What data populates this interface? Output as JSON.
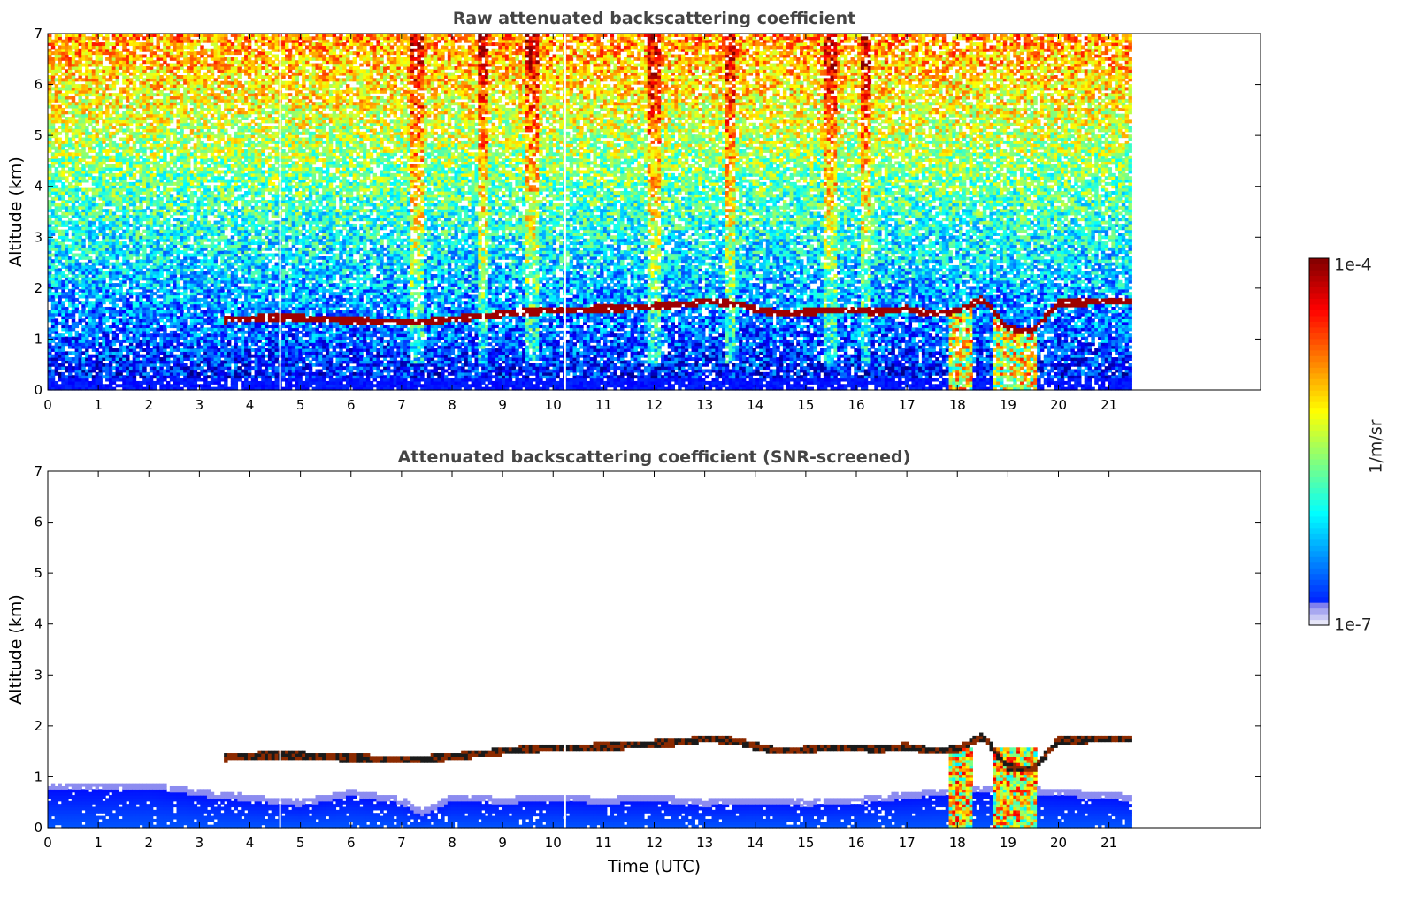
{
  "figure": {
    "colorbar": {
      "label": "1/m/sr",
      "top_label": "1e-4",
      "bottom_label": "1e-7",
      "scale": "log",
      "range": [
        1e-07,
        0.0001
      ],
      "colormap": "jet"
    }
  },
  "chart_data": [
    {
      "type": "heatmap",
      "title": "Raw attenuated backscattering coefficient",
      "xlabel": "",
      "ylabel": "Altitude (km)",
      "xlim": [
        0,
        24
      ],
      "ylim": [
        0,
        7
      ],
      "xticks": [
        "0",
        "1",
        "2",
        "3",
        "4",
        "5",
        "6",
        "7",
        "8",
        "9",
        "10",
        "11",
        "12",
        "13",
        "14",
        "15",
        "16",
        "17",
        "18",
        "19",
        "20",
        "21"
      ],
      "yticks": [
        "0",
        "1",
        "2",
        "3",
        "4",
        "5",
        "6",
        "7"
      ],
      "data_end_time": 21.45,
      "grid": false,
      "features": {
        "cloud_layer": [
          [
            3.5,
            1.38
          ],
          [
            4.5,
            1.44
          ],
          [
            5.5,
            1.4
          ],
          [
            6.0,
            1.37
          ],
          [
            7.3,
            1.33
          ],
          [
            8.5,
            1.45
          ],
          [
            9.5,
            1.55
          ],
          [
            10.5,
            1.58
          ],
          [
            11.5,
            1.62
          ],
          [
            12.5,
            1.68
          ],
          [
            13.0,
            1.75
          ],
          [
            13.5,
            1.72
          ],
          [
            14.5,
            1.5
          ],
          [
            15.5,
            1.58
          ],
          [
            16.5,
            1.55
          ],
          [
            17.0,
            1.6
          ],
          [
            17.5,
            1.5
          ],
          [
            18.0,
            1.55
          ],
          [
            18.5,
            1.8
          ],
          [
            19.0,
            1.2
          ],
          [
            19.5,
            1.15
          ],
          [
            20.0,
            1.72
          ],
          [
            21.45,
            1.75
          ]
        ],
        "precipitation_intervals": [
          [
            17.8,
            18.3
          ],
          [
            18.7,
            19.6
          ]
        ],
        "noise_bands_hours": [
          7.3,
          8.6,
          9.6,
          12.0,
          13.5,
          15.5,
          16.2
        ]
      }
    },
    {
      "type": "heatmap",
      "title": "Attenuated backscattering coefficient (SNR-screened)",
      "xlabel": "Time (UTC)",
      "ylabel": "Altitude (km)",
      "xlim": [
        0,
        24
      ],
      "ylim": [
        0,
        7
      ],
      "xticks": [
        "0",
        "1",
        "2",
        "3",
        "4",
        "5",
        "6",
        "7",
        "8",
        "9",
        "10",
        "11",
        "12",
        "13",
        "14",
        "15",
        "16",
        "17",
        "18",
        "19",
        "20",
        "21"
      ],
      "yticks": [
        "0",
        "1",
        "2",
        "3",
        "4",
        "5",
        "6",
        "7"
      ],
      "data_end_time": 21.45,
      "grid": false,
      "features": {
        "boundary_layer_top": [
          [
            0,
            0.85
          ],
          [
            1,
            0.85
          ],
          [
            2,
            0.9
          ],
          [
            3,
            0.75
          ],
          [
            4,
            0.65
          ],
          [
            5,
            0.55
          ],
          [
            6,
            0.75
          ],
          [
            7,
            0.6
          ],
          [
            7.4,
            0.35
          ],
          [
            8,
            0.65
          ],
          [
            9,
            0.6
          ],
          [
            10,
            0.65
          ],
          [
            11,
            0.6
          ],
          [
            12,
            0.65
          ],
          [
            13,
            0.55
          ],
          [
            14,
            0.6
          ],
          [
            15,
            0.55
          ],
          [
            16,
            0.6
          ],
          [
            17,
            0.7
          ],
          [
            18,
            0.8
          ],
          [
            19,
            0.85
          ],
          [
            20,
            0.75
          ],
          [
            21,
            0.7
          ],
          [
            21.45,
            0.65
          ]
        ],
        "precipitation_intervals": [
          [
            17.8,
            18.3
          ],
          [
            18.7,
            19.6
          ]
        ]
      }
    }
  ]
}
